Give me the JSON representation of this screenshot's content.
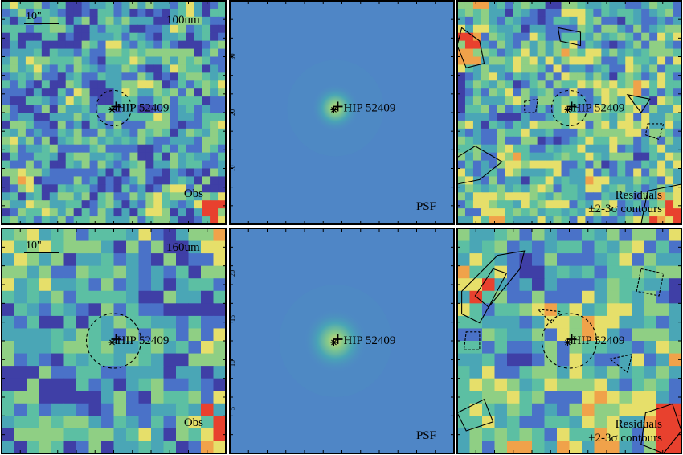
{
  "figure": {
    "target_name": "HIP 52409",
    "scale_bar_label": "10\"",
    "rows": [
      {
        "id": "row-100um",
        "band_label": "100um",
        "panels": [
          {
            "kind": "obs",
            "label": "Obs"
          },
          {
            "kind": "psf",
            "label": "PSF"
          },
          {
            "kind": "residual",
            "label_line1": "Residuals",
            "label_line2": "±2-3σ contours"
          }
        ]
      },
      {
        "id": "row-160um",
        "band_label": "160um",
        "panels": [
          {
            "kind": "obs",
            "label": "Obs"
          },
          {
            "kind": "psf",
            "label": "PSF"
          },
          {
            "kind": "residual",
            "label_line1": "Residuals",
            "label_line2": "±2-3σ contours"
          }
        ]
      }
    ],
    "psf_axis_ticks": {
      "row-100um": [
        "30",
        "20",
        "10"
      ],
      "row-160um": [
        "20",
        "15",
        "10",
        "5"
      ]
    },
    "colors": {
      "deep_blue": "#3f3fa6",
      "blue": "#4a72c8",
      "teal": "#4aa6b6",
      "cyan_green": "#5cbfa3",
      "green": "#8fcf84",
      "yellow": "#e6df6a",
      "orange": "#f0a24a",
      "red": "#e8412e",
      "psf_background": "#4f86c6",
      "frame": "#000000"
    }
  }
}
